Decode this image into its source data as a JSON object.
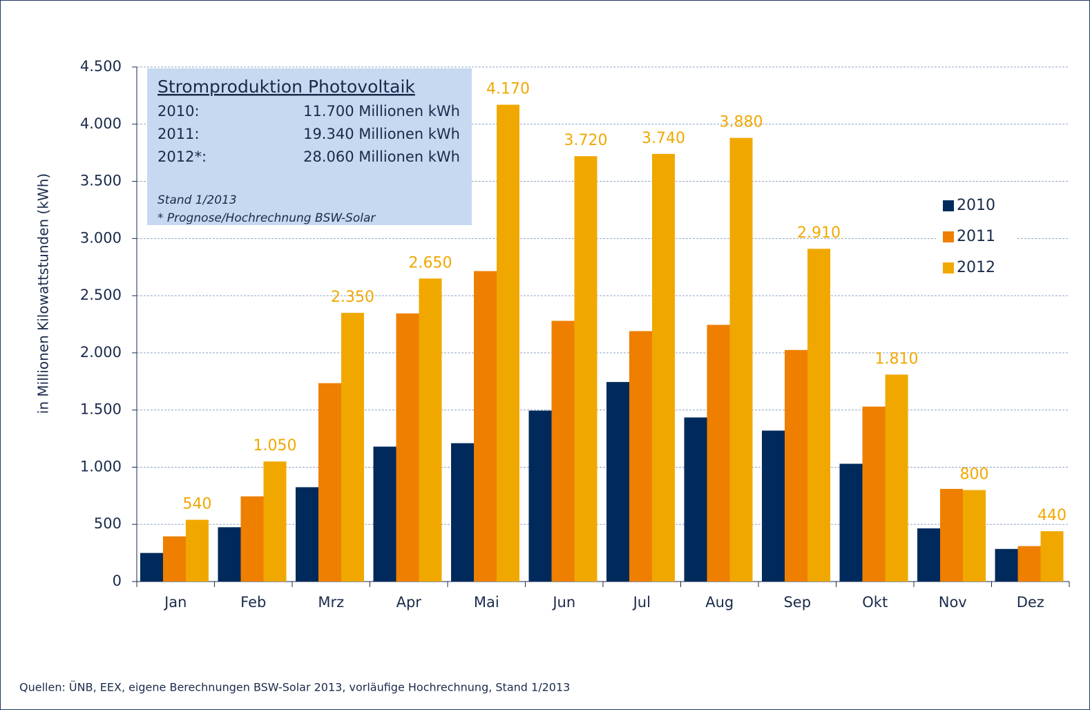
{
  "chart_data": {
    "type": "bar",
    "y_axis_label": "in Millionen Kilowattstunden (kWh)",
    "categories": [
      "Jan",
      "Feb",
      "Mrz",
      "Apr",
      "Mai",
      "Jun",
      "Jul",
      "Aug",
      "Sep",
      "Okt",
      "Nov",
      "Dez"
    ],
    "series": [
      {
        "name": "2010",
        "color": "#002a5c",
        "values": [
          250,
          475,
          825,
          1180,
          1210,
          1495,
          1745,
          1435,
          1320,
          1030,
          465,
          285
        ]
      },
      {
        "name": "2011",
        "color": "#ee7f00",
        "values": [
          395,
          745,
          1735,
          2345,
          2715,
          2280,
          2190,
          2245,
          2025,
          1530,
          810,
          310
        ]
      },
      {
        "name": "2012",
        "color": "#f0a800",
        "values": [
          540,
          1050,
          2350,
          2650,
          4170,
          3720,
          3740,
          3880,
          2910,
          1810,
          800,
          440
        ],
        "value_labels": [
          "540",
          "1.050",
          "2.350",
          "2.650",
          "4.170",
          "3.720",
          "3.740",
          "3.880",
          "2.910",
          "1.810",
          "800",
          "440"
        ]
      }
    ],
    "ylim": [
      0,
      4500
    ],
    "yticks": [
      0,
      500,
      {
        "value": 1000,
        "label": "1.000"
      },
      {
        "value": 1500,
        "label": "1.500"
      },
      {
        "value": 2000,
        "label": "2.000"
      },
      {
        "value": 2500,
        "label": "2.500"
      },
      {
        "value": 3000,
        "label": "3.000"
      },
      {
        "value": 3500,
        "label": "3.500"
      },
      {
        "value": 4000,
        "label": "4.000"
      },
      {
        "value": 4500,
        "label": "4.500"
      }
    ],
    "grid": true,
    "legend": "right",
    "info_box": {
      "title": "Stromproduktion Photovoltaik",
      "rows": [
        {
          "label": "2010:",
          "amount": "11.700 Millionen kWh"
        },
        {
          "label": "2011:",
          "amount": "19.340 Millionen kWh"
        },
        {
          "label": "2012*:",
          "amount": "28.060 Millionen kWh"
        }
      ],
      "notes": [
        "Stand 1/2013",
        "* Prognose/Hochrechnung  BSW-Solar"
      ]
    },
    "source": "Quellen: ÜNB, EEX, eigene Berechnungen  BSW-Solar 2013,  vorläufige Hochrechnung,  Stand 1/2013"
  }
}
